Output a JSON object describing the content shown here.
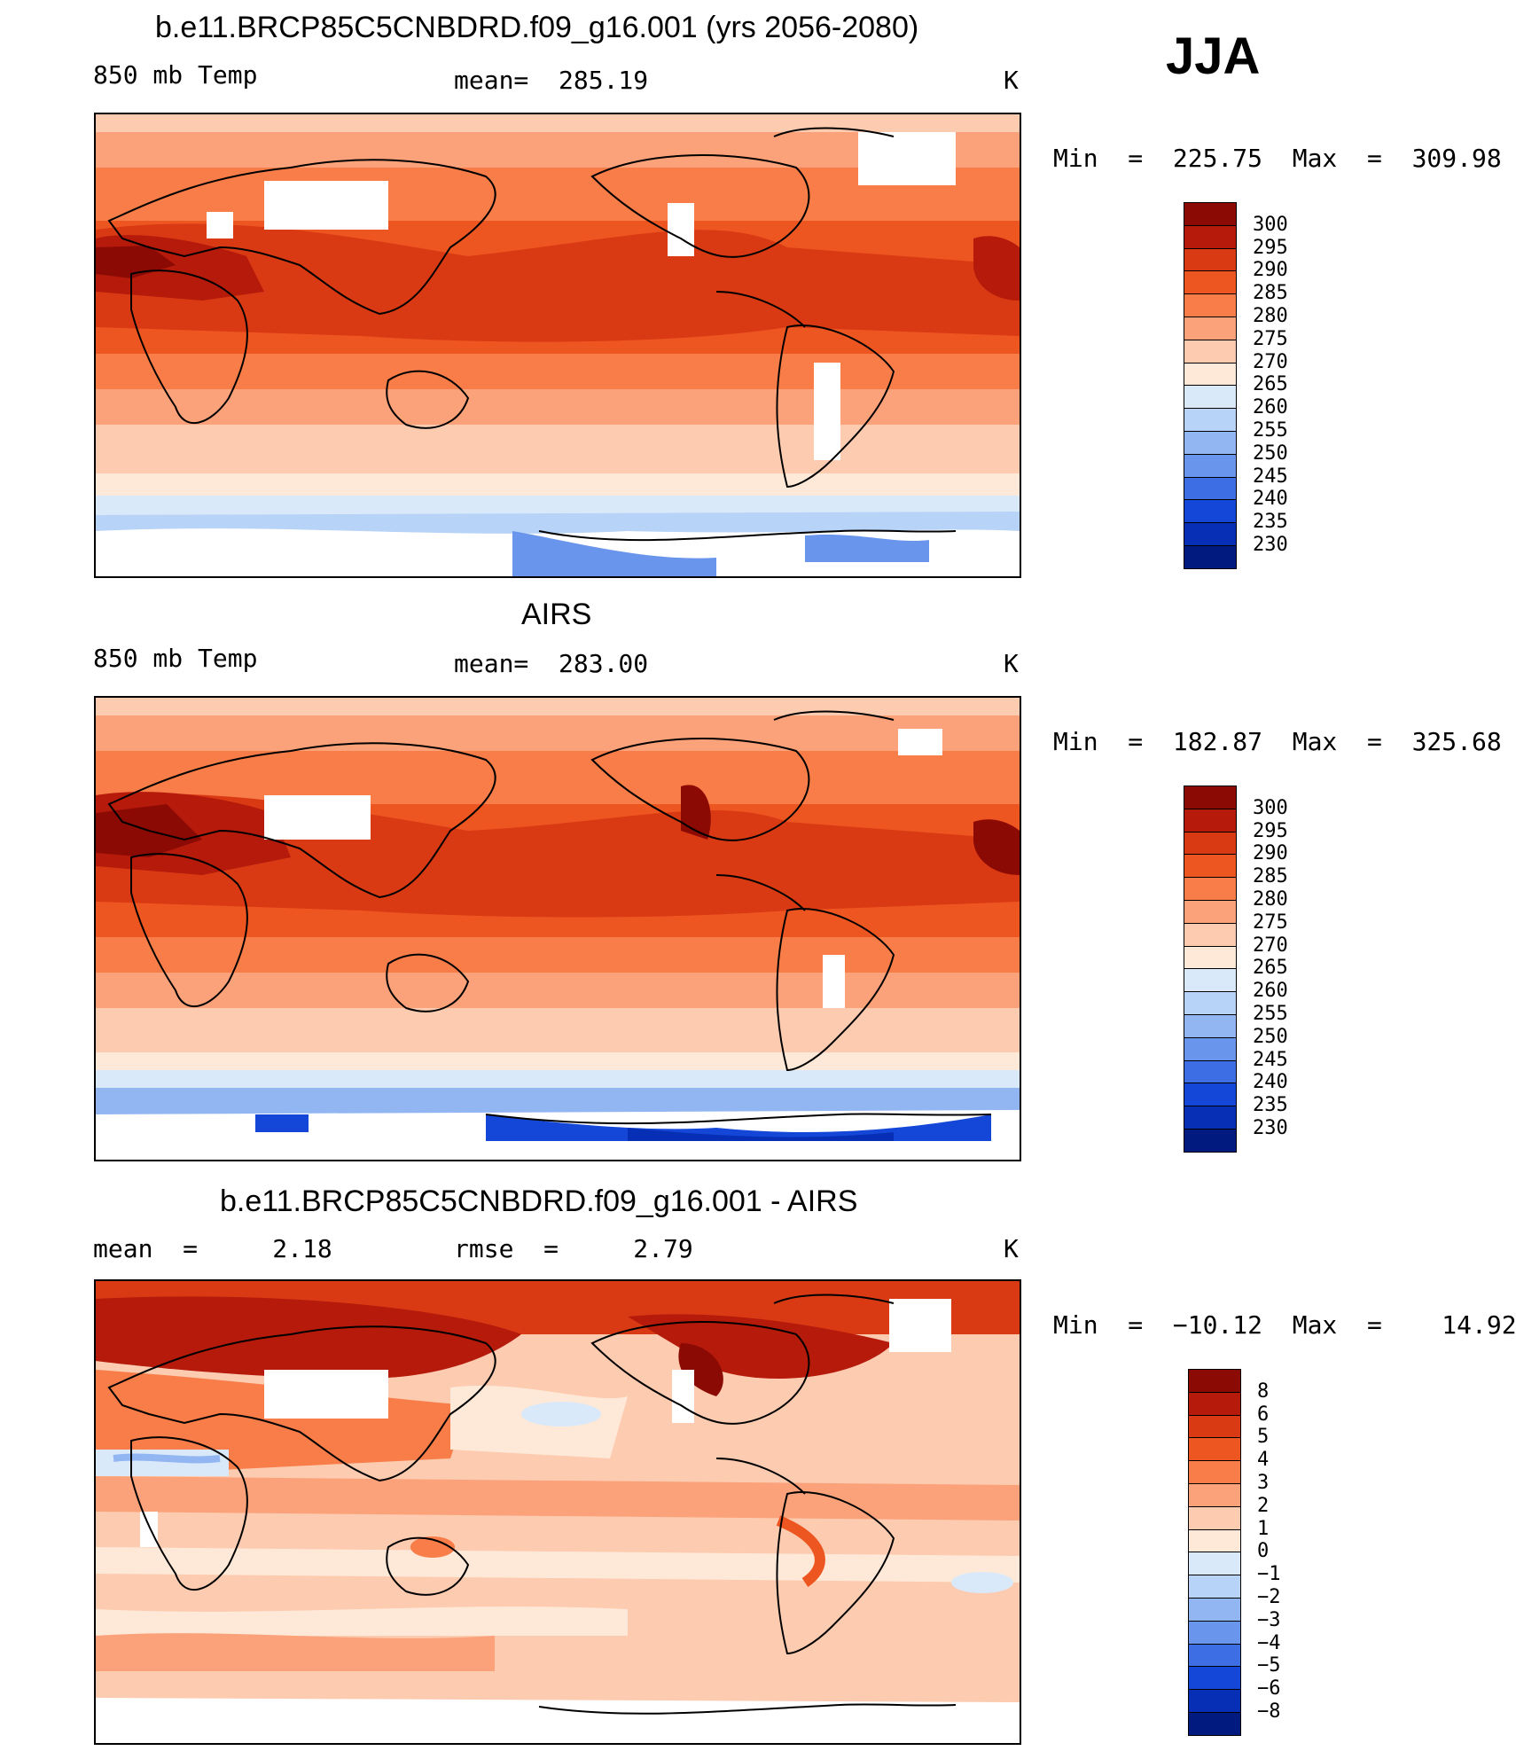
{
  "season": "JJA",
  "panels": [
    {
      "title": "b.e11.BRCP85C5CNBDRD.f09_g16.001 (yrs 2056-2080)",
      "variable": "850 mb Temp",
      "stat": "mean=  285.19",
      "units": "K",
      "minmax": "Min  =  225.75  Max  =  309.98",
      "colorbar": [
        "300",
        "295",
        "290",
        "285",
        "280",
        "275",
        "270",
        "265",
        "260",
        "255",
        "250",
        "245",
        "240",
        "235",
        "230"
      ],
      "colors": [
        "#8c0a04",
        "#b51a0b",
        "#d93a14",
        "#ee5621",
        "#f87d48",
        "#fca27a",
        "#fdcbb0",
        "#fee9d8",
        "#d9e9f9",
        "#b7d3f7",
        "#92b6f2",
        "#6a95ec",
        "#3d6ee3",
        "#1447d8",
        "#062fb5",
        "#001a80"
      ]
    },
    {
      "title": "AIRS",
      "variable": "850 mb Temp",
      "stat": "mean=  283.00",
      "units": "K",
      "minmax": "Min  =  182.87  Max  =  325.68",
      "colorbar": [
        "300",
        "295",
        "290",
        "285",
        "280",
        "275",
        "270",
        "265",
        "260",
        "255",
        "250",
        "245",
        "240",
        "235",
        "230"
      ],
      "colors": [
        "#8c0a04",
        "#b51a0b",
        "#d93a14",
        "#ee5621",
        "#f87d48",
        "#fca27a",
        "#fdcbb0",
        "#fee9d8",
        "#d9e9f9",
        "#b7d3f7",
        "#92b6f2",
        "#6a95ec",
        "#3d6ee3",
        "#1447d8",
        "#062fb5",
        "#001a80"
      ]
    },
    {
      "title": "b.e11.BRCP85C5CNBDRD.f09_g16.001 - AIRS",
      "variable": "mean  =     2.18",
      "stat": "rmse  =     2.79",
      "units": "K",
      "minmax": "Min  =  −10.12  Max  =    14.92",
      "colorbar": [
        "8",
        "6",
        "5",
        "4",
        "3",
        "2",
        "1",
        "0",
        "−1",
        "−2",
        "−3",
        "−4",
        "−5",
        "−6",
        "−8"
      ],
      "colors": [
        "#8c0a04",
        "#b51a0b",
        "#d93a14",
        "#ee5621",
        "#f87d48",
        "#fca27a",
        "#fdcbb0",
        "#fee9d8",
        "#d9e9f9",
        "#b7d3f7",
        "#92b6f2",
        "#6a95ec",
        "#3d6ee3",
        "#1447d8",
        "#062fb5",
        "#001a80"
      ]
    }
  ]
}
